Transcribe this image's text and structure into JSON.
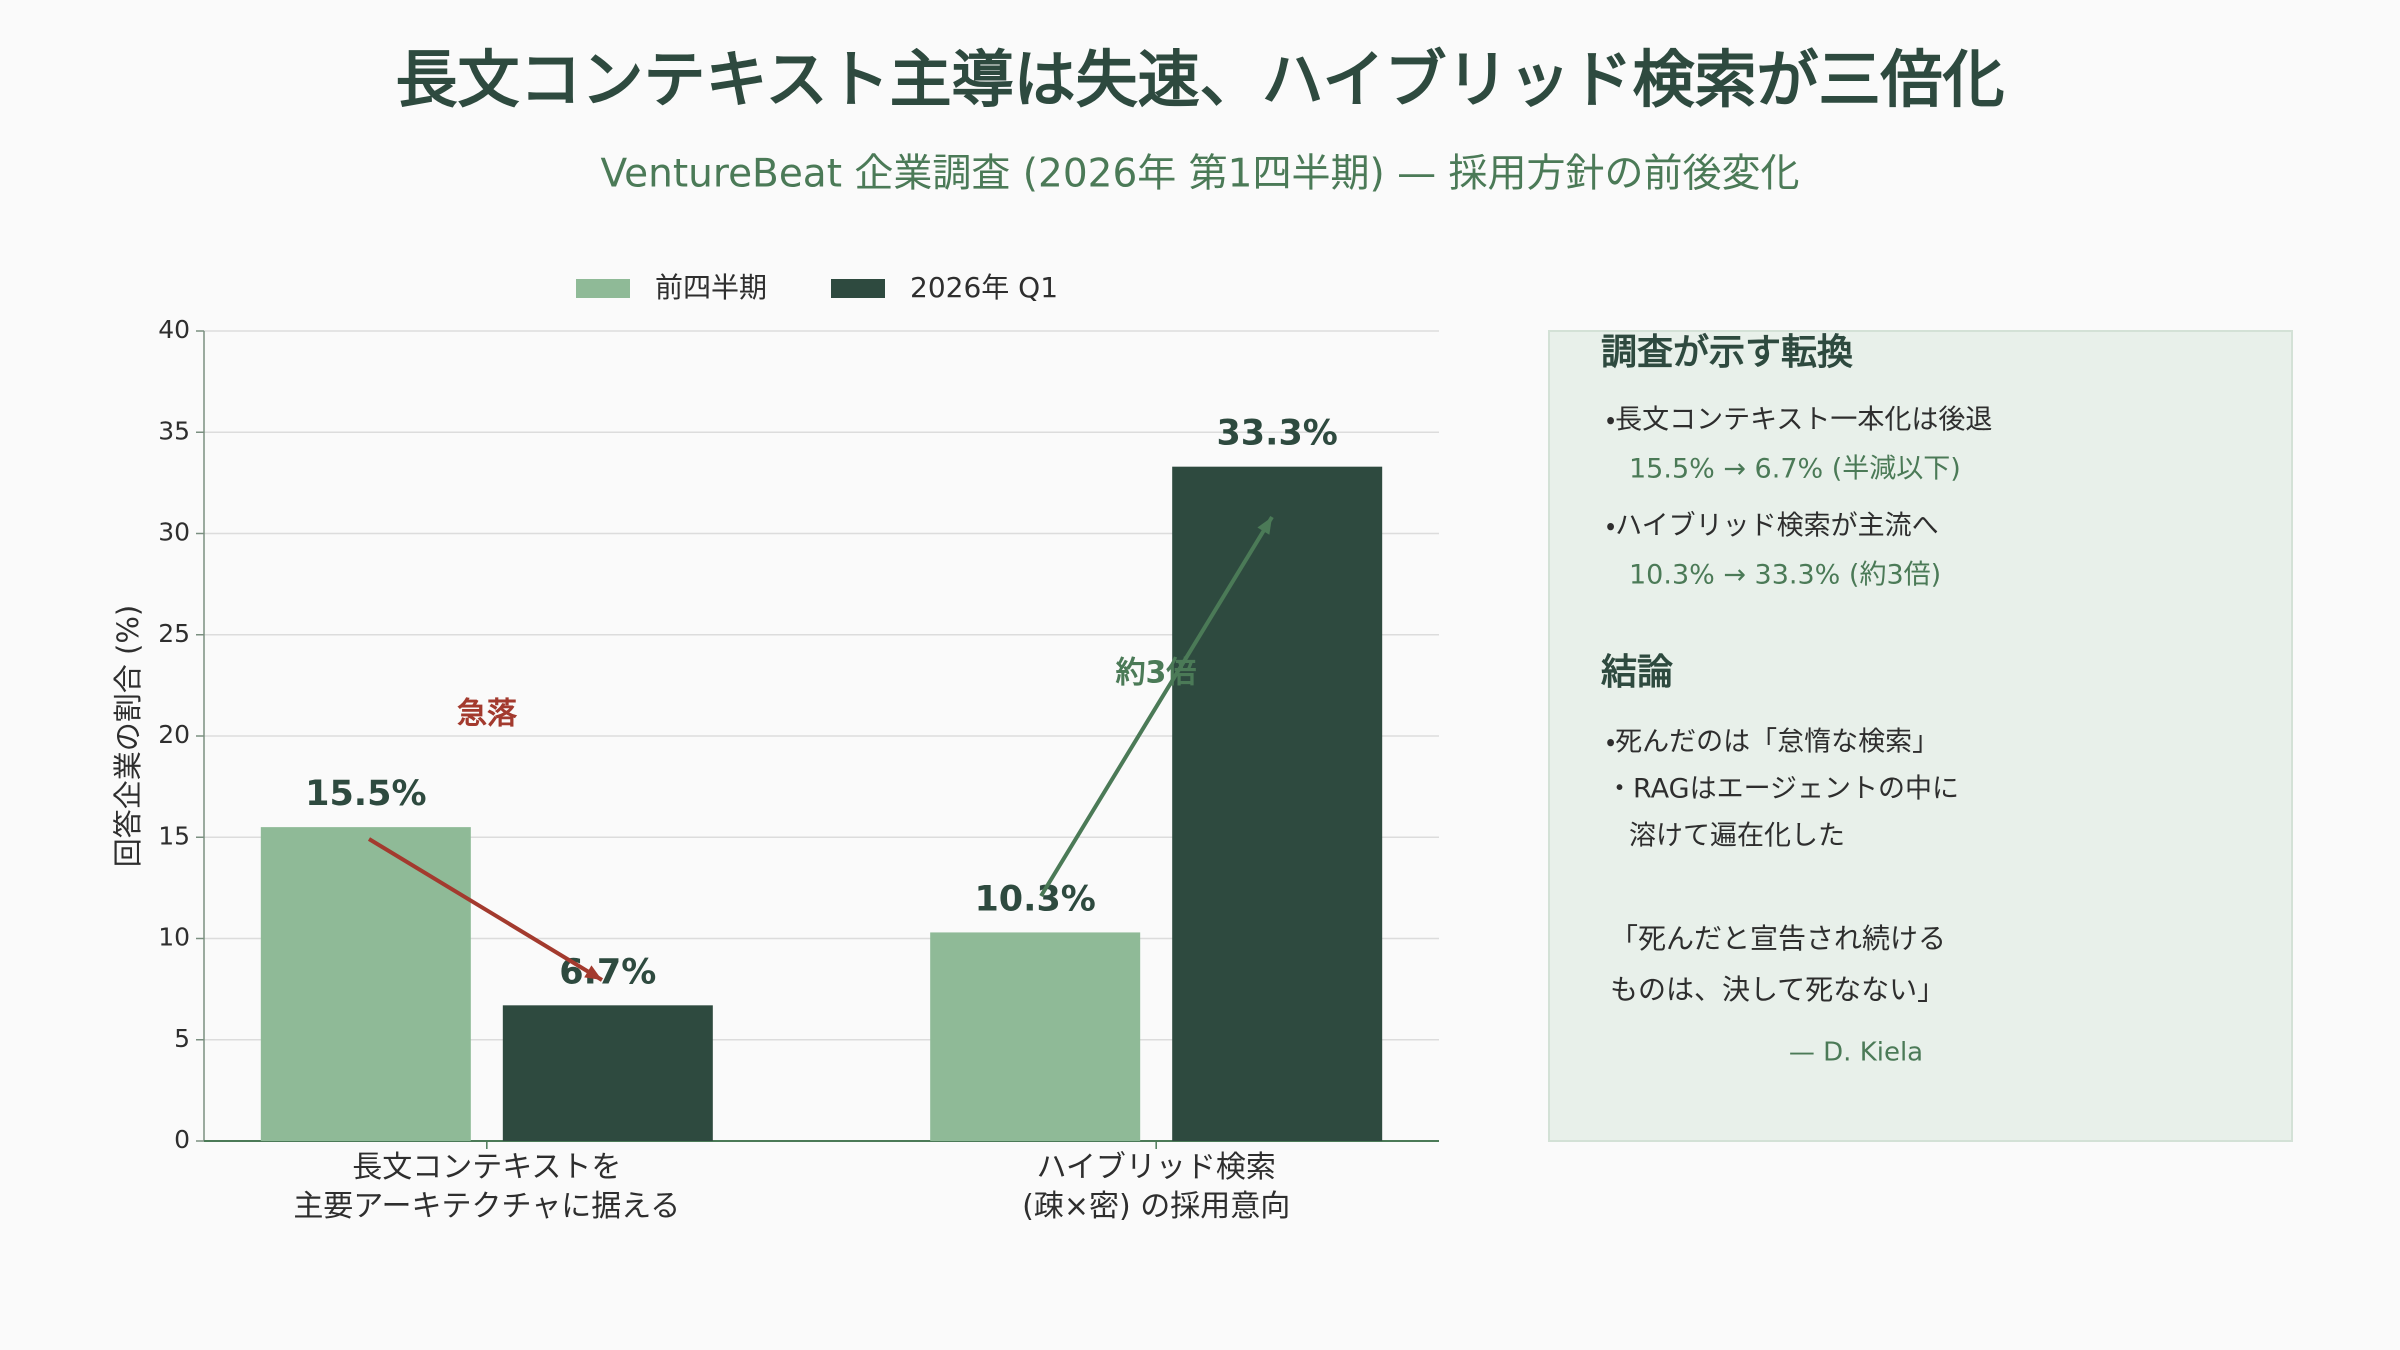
{
  "chart_data": {
    "type": "bar",
    "title": "長文コンテキスト主導は失速、ハイブリッド検索が三倍化",
    "subtitle": "VentureBeat 企業調査 (2026年 第1四半期) — 採用方針の前後変化",
    "categories": [
      "長文コンテキストを\n主要アーキテクチャに据える",
      "ハイブリッド検索\n(疎×密) の採用意向"
    ],
    "series": [
      {
        "name": "前四半期",
        "color": "#8fba97",
        "values": [
          15.5,
          10.3
        ],
        "value_labels": [
          "15.5%",
          "10.3%"
        ]
      },
      {
        "name": "2026年 Q1",
        "color": "#2e4a3f",
        "values": [
          6.7,
          33.3
        ],
        "value_labels": [
          "6.7%",
          "33.3%"
        ]
      }
    ],
    "ylabel": "回答企業の割合 (%)",
    "ylim": [
      0,
      40
    ],
    "yticks": [
      0,
      5,
      10,
      15,
      20,
      25,
      30,
      35,
      40
    ],
    "grid": true,
    "legend": "top",
    "annotations": [
      {
        "text": "急落",
        "color": "#a33a2e"
      },
      {
        "text": "約3倍",
        "color": "#4b7a57"
      }
    ]
  },
  "side_panel": {
    "sections": [
      {
        "heading": "調査が示す転換",
        "items": [
          {
            "text": "・長文コンテキスト一本化は後退",
            "sub": "15.5% → 6.7% (半減以下)"
          },
          {
            "text": "・ハイブリッド検索が主流へ",
            "sub": "10.3% → 33.3% (約3倍)"
          }
        ]
      },
      {
        "heading": "結論",
        "items": [
          {
            "text": "・死んだのは「怠惰な検索」"
          },
          {
            "text": "・RAGはエージェントの中に",
            "sub": "溶けて遍在化した"
          }
        ]
      }
    ],
    "quote": {
      "lines": [
        "「死んだと宣告され続ける",
        "ものは、決して死なない」"
      ],
      "author": "— D. Kiela"
    }
  }
}
